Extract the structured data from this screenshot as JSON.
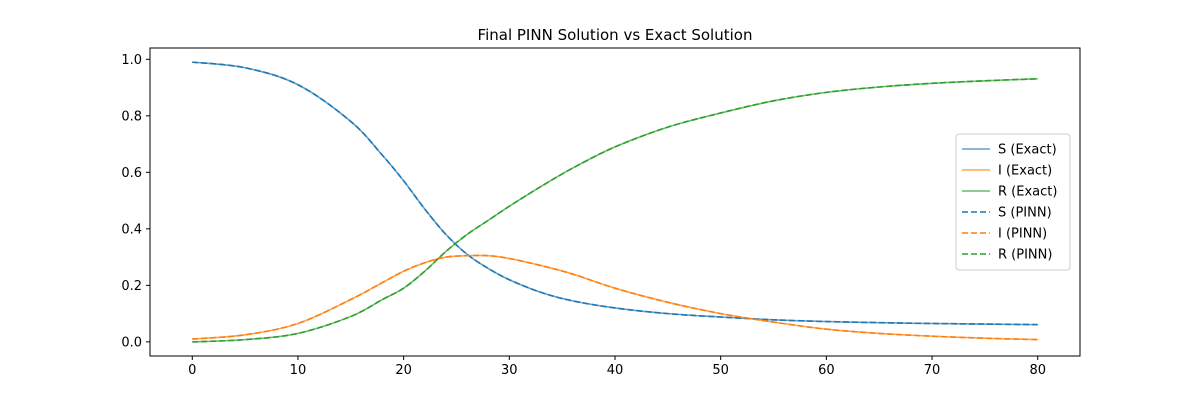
{
  "chart_data": {
    "type": "line",
    "title": "Final PINN Solution vs Exact Solution",
    "xlabel": "",
    "ylabel": "",
    "xlim": [
      -4,
      84
    ],
    "ylim": [
      -0.05,
      1.04
    ],
    "xticks": [
      0,
      10,
      20,
      30,
      40,
      50,
      60,
      70,
      80
    ],
    "yticks": [
      0.0,
      0.2,
      0.4,
      0.6,
      0.8,
      1.0
    ],
    "xtick_labels": [
      "0",
      "10",
      "20",
      "30",
      "40",
      "50",
      "60",
      "70",
      "80"
    ],
    "ytick_labels": [
      "0.0",
      "0.2",
      "0.4",
      "0.6",
      "0.8",
      "1.0"
    ],
    "grid": false,
    "legend_position": "center right",
    "x": [
      0,
      5,
      10,
      15,
      18,
      20,
      22,
      24,
      26,
      28,
      30,
      33,
      36,
      40,
      45,
      50,
      55,
      60,
      65,
      70,
      75,
      80
    ],
    "series": [
      {
        "name": "S (Exact)",
        "color": "#1f77b4",
        "linestyle": "solid",
        "alpha": 0.7,
        "values": [
          0.99,
          0.97,
          0.91,
          0.78,
          0.66,
          0.57,
          0.47,
          0.38,
          0.31,
          0.26,
          0.22,
          0.175,
          0.145,
          0.12,
          0.1,
          0.088,
          0.078,
          0.072,
          0.068,
          0.065,
          0.063,
          0.061
        ]
      },
      {
        "name": "I (Exact)",
        "color": "#ff7f0e",
        "linestyle": "solid",
        "alpha": 0.7,
        "values": [
          0.01,
          0.025,
          0.065,
          0.15,
          0.21,
          0.25,
          0.28,
          0.3,
          0.305,
          0.305,
          0.295,
          0.27,
          0.24,
          0.19,
          0.14,
          0.1,
          0.07,
          0.045,
          0.03,
          0.02,
          0.013,
          0.008
        ]
      },
      {
        "name": "R (Exact)",
        "color": "#2ca02c",
        "linestyle": "solid",
        "alpha": 0.7,
        "values": [
          0.0,
          0.008,
          0.03,
          0.09,
          0.15,
          0.19,
          0.25,
          0.32,
          0.38,
          0.43,
          0.48,
          0.55,
          0.615,
          0.69,
          0.76,
          0.81,
          0.853,
          0.883,
          0.902,
          0.915,
          0.924,
          0.931
        ]
      },
      {
        "name": "S (PINN)",
        "color": "#1f77b4",
        "linestyle": "dashed",
        "alpha": 1.0,
        "values": [
          0.99,
          0.97,
          0.91,
          0.78,
          0.66,
          0.57,
          0.47,
          0.38,
          0.31,
          0.26,
          0.22,
          0.175,
          0.145,
          0.12,
          0.1,
          0.088,
          0.078,
          0.072,
          0.068,
          0.065,
          0.063,
          0.061
        ]
      },
      {
        "name": "I (PINN)",
        "color": "#ff7f0e",
        "linestyle": "dashed",
        "alpha": 1.0,
        "values": [
          0.01,
          0.025,
          0.065,
          0.15,
          0.21,
          0.25,
          0.28,
          0.3,
          0.305,
          0.305,
          0.295,
          0.27,
          0.24,
          0.19,
          0.14,
          0.1,
          0.07,
          0.045,
          0.03,
          0.02,
          0.013,
          0.008
        ]
      },
      {
        "name": "R (PINN)",
        "color": "#2ca02c",
        "linestyle": "dashed",
        "alpha": 1.0,
        "values": [
          0.0,
          0.008,
          0.03,
          0.09,
          0.15,
          0.19,
          0.25,
          0.32,
          0.38,
          0.43,
          0.48,
          0.55,
          0.615,
          0.69,
          0.76,
          0.81,
          0.853,
          0.883,
          0.902,
          0.915,
          0.924,
          0.931
        ]
      }
    ]
  }
}
